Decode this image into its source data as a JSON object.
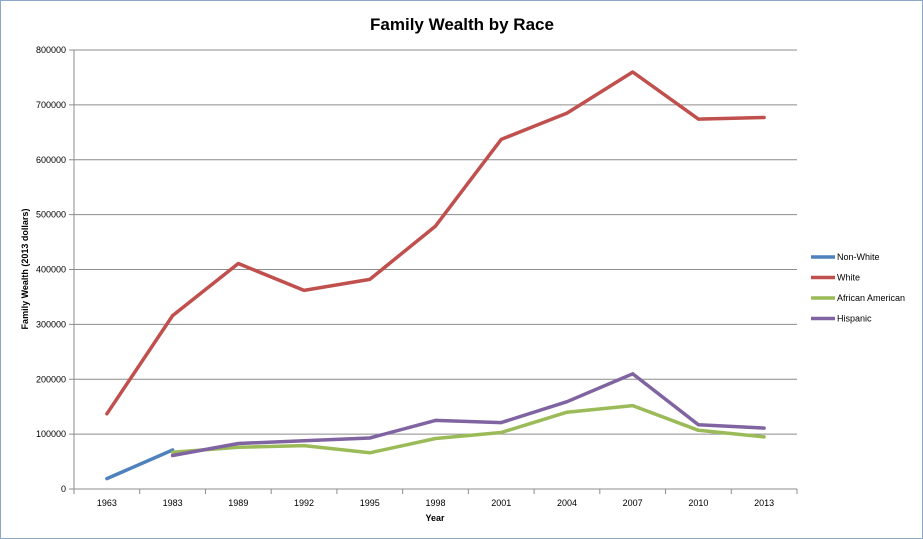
{
  "chart_data": {
    "type": "line",
    "title": "Family Wealth by Race",
    "xlabel": "Year",
    "ylabel": "Family Wealth (2013 dollars)",
    "ylim": [
      0,
      800000
    ],
    "yticks": [
      "0",
      "100000",
      "200000",
      "300000",
      "400000",
      "500000",
      "600000",
      "700000",
      "800000"
    ],
    "categories": [
      "1963",
      "1983",
      "1989",
      "1992",
      "1995",
      "1998",
      "2001",
      "2004",
      "2007",
      "2010",
      "2013"
    ],
    "grid": "horizontal",
    "legend_position": "right",
    "series": [
      {
        "name": "Non-White",
        "color": "#4f81bd",
        "values": [
          19000,
          71000,
          null,
          null,
          null,
          null,
          null,
          null,
          null,
          null,
          null
        ]
      },
      {
        "name": "White",
        "color": "#c0504d",
        "values": [
          137000,
          316000,
          411000,
          362000,
          382000,
          479000,
          637000,
          685000,
          760000,
          674000,
          677000
        ]
      },
      {
        "name": "African American",
        "color": "#9bbb59",
        "values": [
          null,
          67000,
          76000,
          79000,
          66000,
          92000,
          103000,
          140000,
          152000,
          107000,
          95000
        ]
      },
      {
        "name": "Hispanic",
        "color": "#8064a2",
        "values": [
          null,
          61000,
          83000,
          88000,
          93000,
          125000,
          121000,
          159000,
          210000,
          117000,
          111000
        ]
      }
    ]
  }
}
